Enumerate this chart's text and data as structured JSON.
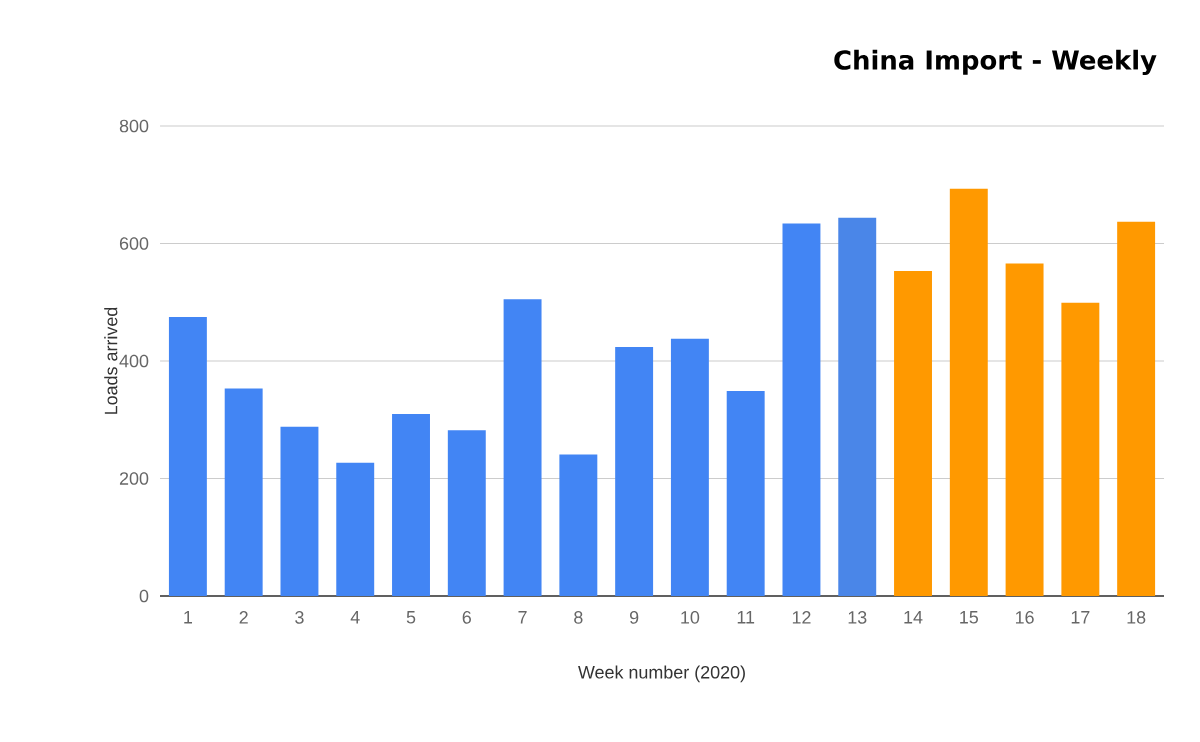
{
  "chart_data": {
    "type": "bar",
    "title": "China Import - Weekly",
    "xlabel": "Week number (2020)",
    "ylabel": "Loads arrived",
    "categories": [
      "1",
      "2",
      "3",
      "4",
      "5",
      "6",
      "7",
      "8",
      "9",
      "10",
      "11",
      "12",
      "13",
      "14",
      "15",
      "16",
      "17",
      "18"
    ],
    "values": [
      475,
      353,
      288,
      227,
      310,
      282,
      505,
      241,
      424,
      438,
      349,
      634,
      644,
      553,
      693,
      566,
      499,
      637
    ],
    "colors": [
      "#4285f4",
      "#4285f4",
      "#4285f4",
      "#4285f4",
      "#4285f4",
      "#4285f4",
      "#4285f4",
      "#4285f4",
      "#4285f4",
      "#4285f4",
      "#4285f4",
      "#4285f4",
      "#4a86e8",
      "#ff9900",
      "#ff9900",
      "#ff9900",
      "#ff9900",
      "#ff9900"
    ],
    "ylim": [
      0,
      800
    ],
    "yticks": [
      0,
      200,
      400,
      600,
      800
    ],
    "grid": "y"
  }
}
